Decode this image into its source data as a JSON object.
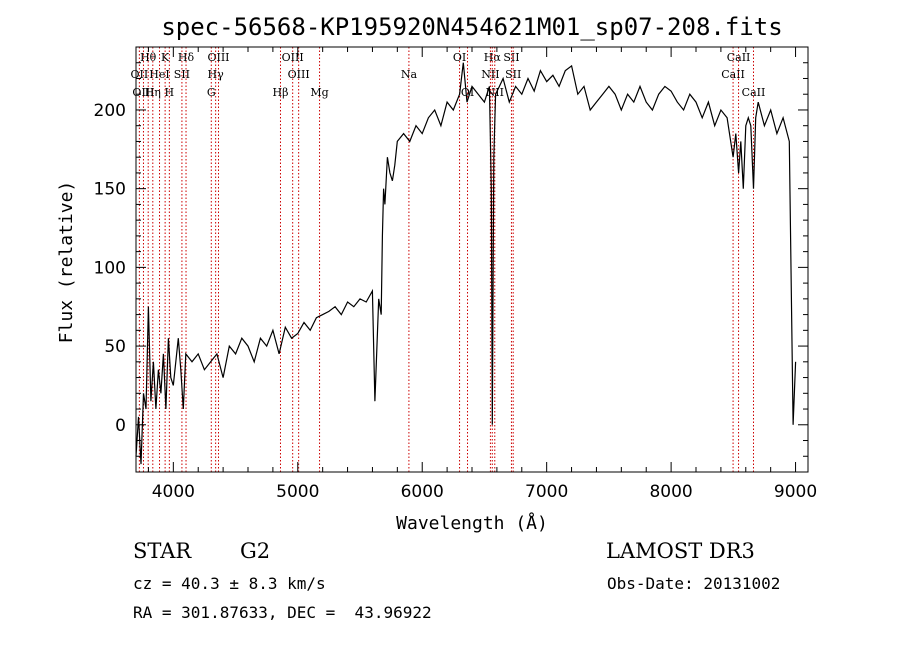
{
  "chart_data": {
    "type": "line",
    "title": "spec-56568-KP195920N454621M01_sp07-208.fits",
    "xlabel": "Wavelength (Å)",
    "ylabel": "Flux (relative)",
    "xlim": [
      3700,
      9100
    ],
    "ylim": [
      -30,
      240
    ],
    "x_ticks": [
      4000,
      5000,
      6000,
      7000,
      8000,
      9000
    ],
    "y_ticks": [
      0,
      50,
      100,
      150,
      200
    ],
    "grid": false,
    "line_color": "#000000",
    "marker_color": "#cc0000",
    "series": [
      {
        "x": [
          3700,
          3720,
          3740,
          3760,
          3780,
          3800,
          3820,
          3840,
          3860,
          3880,
          3900,
          3920,
          3940,
          3960,
          3980,
          4000,
          4020,
          4040,
          4060,
          4080,
          4100,
          4150,
          4200,
          4250,
          4300,
          4350,
          4400,
          4450,
          4500,
          4550,
          4600,
          4650,
          4700,
          4750,
          4800,
          4850,
          4900,
          4950,
          5000,
          5050,
          5100,
          5150,
          5200,
          5250,
          5300,
          5350,
          5400,
          5450,
          5500,
          5550,
          5600,
          5620,
          5650,
          5670,
          5680,
          5690,
          5700,
          5720,
          5740,
          5760,
          5780,
          5800,
          5850,
          5900,
          5950,
          6000,
          6050,
          6100,
          6150,
          6200,
          6250,
          6300,
          6330,
          6360,
          6400,
          6450,
          6500,
          6540,
          6555,
          6563,
          6575,
          6590,
          6620,
          6650,
          6700,
          6750,
          6800,
          6850,
          6900,
          6950,
          7000,
          7050,
          7100,
          7150,
          7200,
          7250,
          7300,
          7350,
          7400,
          7450,
          7500,
          7550,
          7600,
          7650,
          7700,
          7750,
          7800,
          7850,
          7900,
          7950,
          8000,
          8050,
          8100,
          8150,
          8200,
          8250,
          8300,
          8350,
          8400,
          8450,
          8498,
          8520,
          8542,
          8560,
          8580,
          8600,
          8620,
          8640,
          8662,
          8680,
          8700,
          8750,
          8800,
          8850,
          8900,
          8950,
          8980,
          9000
        ],
        "y": [
          -20,
          5,
          -25,
          20,
          10,
          75,
          15,
          40,
          10,
          35,
          20,
          45,
          10,
          55,
          30,
          25,
          40,
          55,
          35,
          10,
          45,
          40,
          45,
          35,
          40,
          45,
          30,
          50,
          45,
          55,
          50,
          40,
          55,
          50,
          60,
          45,
          62,
          55,
          58,
          65,
          60,
          68,
          70,
          72,
          75,
          70,
          78,
          75,
          80,
          78,
          85,
          15,
          80,
          70,
          120,
          150,
          140,
          170,
          160,
          155,
          165,
          180,
          185,
          180,
          190,
          185,
          195,
          200,
          190,
          205,
          200,
          210,
          230,
          205,
          215,
          210,
          205,
          215,
          150,
          0,
          170,
          210,
          215,
          220,
          205,
          215,
          210,
          220,
          212,
          225,
          218,
          222,
          215,
          225,
          228,
          210,
          215,
          200,
          205,
          210,
          215,
          210,
          200,
          210,
          205,
          215,
          205,
          200,
          210,
          215,
          212,
          205,
          200,
          210,
          205,
          195,
          205,
          190,
          200,
          195,
          170,
          185,
          160,
          180,
          150,
          190,
          195,
          190,
          150,
          195,
          205,
          190,
          200,
          185,
          195,
          180,
          0,
          40
        ]
      }
    ],
    "line_markers": [
      {
        "label": "Hθ",
        "x": 3798,
        "row": 1
      },
      {
        "label": "OII",
        "x": 3727,
        "row": 2
      },
      {
        "label": "OIII",
        "x": 3760,
        "row": 3
      },
      {
        "label": "K",
        "x": 3934,
        "row": 1
      },
      {
        "label": "HeI",
        "x": 3889,
        "row": 2
      },
      {
        "label": "Hη",
        "x": 3835,
        "row": 3
      },
      {
        "label": "SII",
        "x": 4069,
        "row": 2
      },
      {
        "label": "H",
        "x": 3968,
        "row": 3
      },
      {
        "label": "Hδ",
        "x": 4102,
        "row": 1
      },
      {
        "label": "OIII",
        "x": 4363,
        "row": 1
      },
      {
        "label": "Hγ",
        "x": 4340,
        "row": 2
      },
      {
        "label": "G",
        "x": 4305,
        "row": 3
      },
      {
        "label": "Hβ",
        "x": 4861,
        "row": 3
      },
      {
        "label": "OIII",
        "x": 4959,
        "row": 1
      },
      {
        "label": "OIII",
        "x": 5007,
        "row": 2
      },
      {
        "label": "Mg",
        "x": 5175,
        "row": 3
      },
      {
        "label": "Na",
        "x": 5893,
        "row": 2
      },
      {
        "label": "OI",
        "x": 6300,
        "row": 1
      },
      {
        "label": "OI",
        "x": 6364,
        "row": 3
      },
      {
        "label": "Hα",
        "x": 6563,
        "row": 1
      },
      {
        "label": "NII",
        "x": 6548,
        "row": 2
      },
      {
        "label": "NII",
        "x": 6583,
        "row": 3
      },
      {
        "label": "SII",
        "x": 6717,
        "row": 1
      },
      {
        "label": "SII",
        "x": 6731,
        "row": 2
      },
      {
        "label": "CaII",
        "x": 8498,
        "row": 2
      },
      {
        "label": "CaII",
        "x": 8542,
        "row": 1
      },
      {
        "label": "CaII",
        "x": 8662,
        "row": 3
      }
    ]
  },
  "info": {
    "object_class": "STAR",
    "subclass": "G2",
    "survey": "LAMOST DR3",
    "redshift_line": "cz = 40.3 ± 8.3 km/s",
    "obs_date_line": "Obs-Date: 20131002",
    "coords_line": "RA = 301.87633, DEC =  43.96922"
  }
}
